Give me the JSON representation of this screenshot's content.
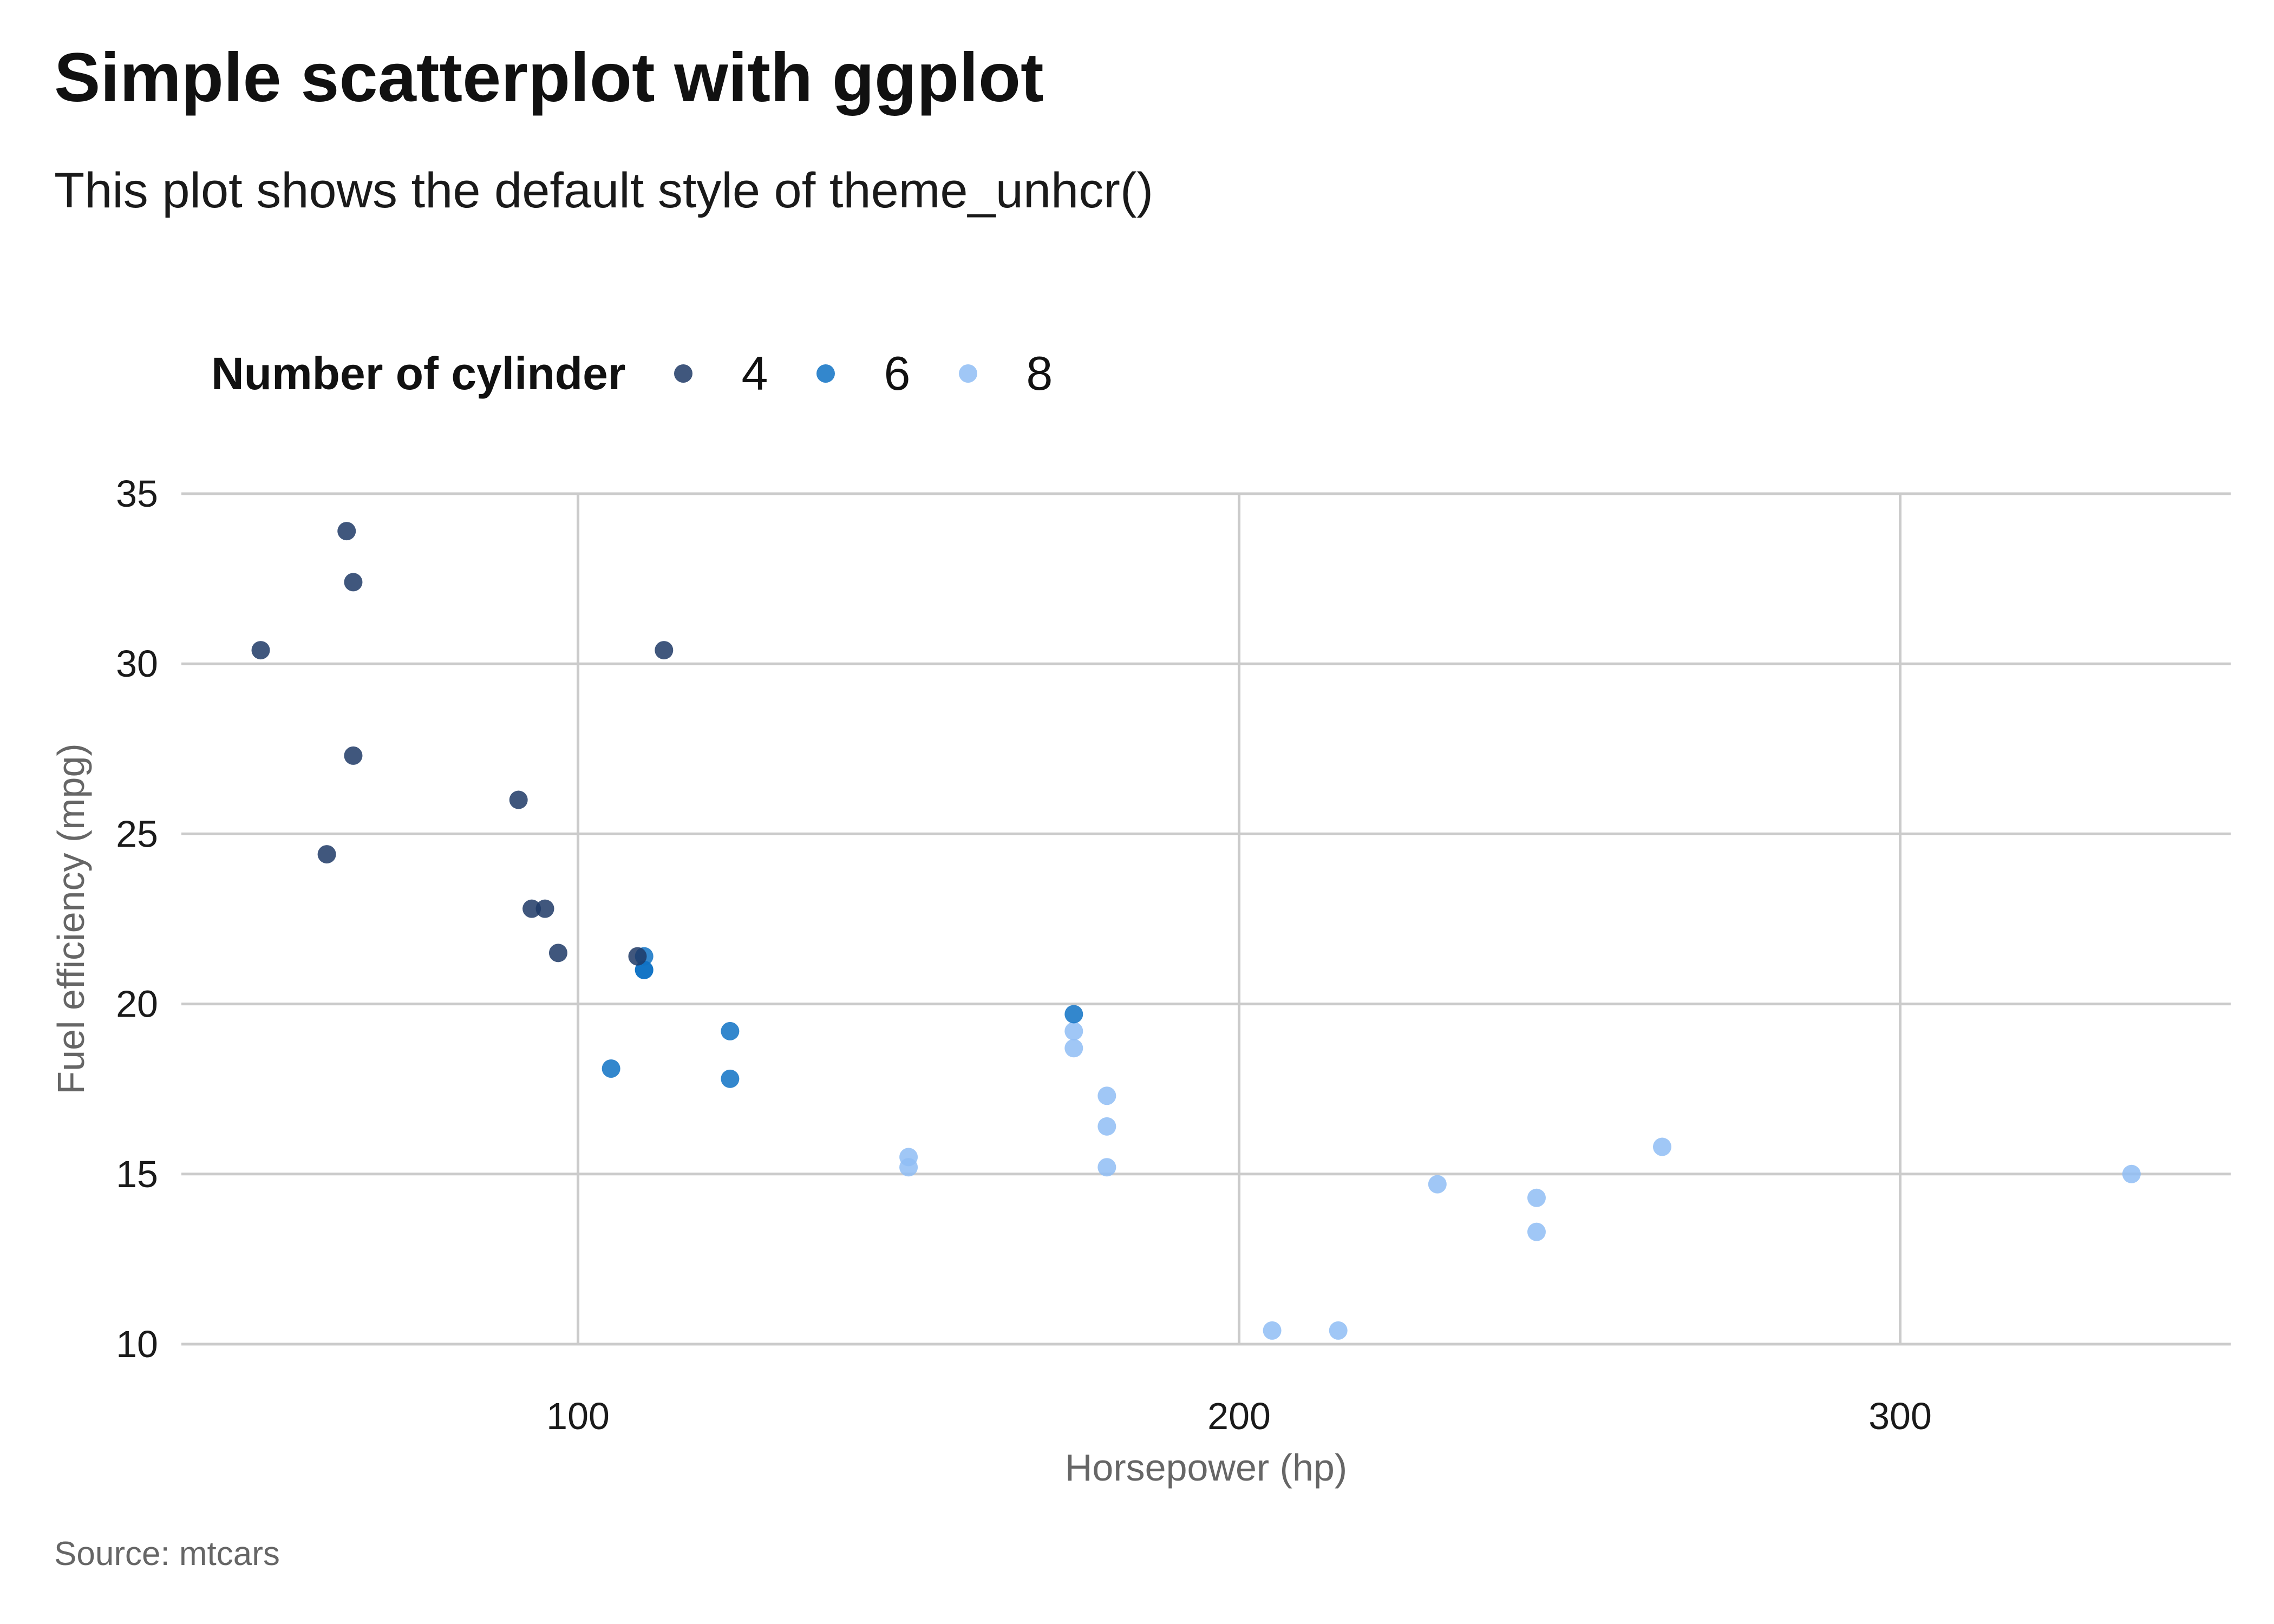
{
  "title": "Simple scatterplot with ggplot",
  "subtitle": "This plot shows the default style of theme_unhcr()",
  "caption": "Source: mtcars",
  "legend": {
    "title": "Number of cylinder",
    "items": [
      {
        "label": "4",
        "color": "#1e3a66"
      },
      {
        "label": "6",
        "color": "#0f72c4"
      },
      {
        "label": "8",
        "color": "#8fbdf5"
      }
    ]
  },
  "chart_data": {
    "type": "scatter",
    "title": "Simple scatterplot with ggplot",
    "subtitle": "This plot shows the default style of theme_unhcr()",
    "xlabel": "Horsepower (hp)",
    "ylabel": "Fuel efficiency (mpg)",
    "xlim": [
      40,
      350
    ],
    "ylim": [
      10,
      35
    ],
    "xticks": [
      100,
      200,
      300
    ],
    "yticks": [
      10,
      15,
      20,
      25,
      30,
      35
    ],
    "grid": true,
    "legend_position": "top-left",
    "series": [
      {
        "name": "4",
        "color": "#1e3a66",
        "points": [
          {
            "x": 93,
            "y": 22.8
          },
          {
            "x": 62,
            "y": 24.4
          },
          {
            "x": 95,
            "y": 22.8
          },
          {
            "x": 66,
            "y": 32.4
          },
          {
            "x": 52,
            "y": 30.4
          },
          {
            "x": 65,
            "y": 33.9
          },
          {
            "x": 97,
            "y": 21.5
          },
          {
            "x": 66,
            "y": 27.3
          },
          {
            "x": 91,
            "y": 26.0
          },
          {
            "x": 113,
            "y": 30.4
          },
          {
            "x": 109,
            "y": 21.4
          }
        ]
      },
      {
        "name": "6",
        "color": "#0f72c4",
        "points": [
          {
            "x": 110,
            "y": 21.0
          },
          {
            "x": 110,
            "y": 21.0
          },
          {
            "x": 110,
            "y": 21.4
          },
          {
            "x": 105,
            "y": 18.1
          },
          {
            "x": 123,
            "y": 19.2
          },
          {
            "x": 123,
            "y": 17.8
          },
          {
            "x": 175,
            "y": 19.7
          }
        ]
      },
      {
        "name": "8",
        "color": "#8fbdf5",
        "points": [
          {
            "x": 175,
            "y": 18.7
          },
          {
            "x": 245,
            "y": 14.3
          },
          {
            "x": 180,
            "y": 16.4
          },
          {
            "x": 180,
            "y": 17.3
          },
          {
            "x": 180,
            "y": 15.2
          },
          {
            "x": 205,
            "y": 10.4
          },
          {
            "x": 215,
            "y": 10.4
          },
          {
            "x": 230,
            "y": 14.7
          },
          {
            "x": 150,
            "y": 15.5
          },
          {
            "x": 150,
            "y": 15.2
          },
          {
            "x": 245,
            "y": 13.3
          },
          {
            "x": 175,
            "y": 19.2
          },
          {
            "x": 264,
            "y": 15.8
          },
          {
            "x": 335,
            "y": 15.0
          }
        ]
      }
    ]
  }
}
